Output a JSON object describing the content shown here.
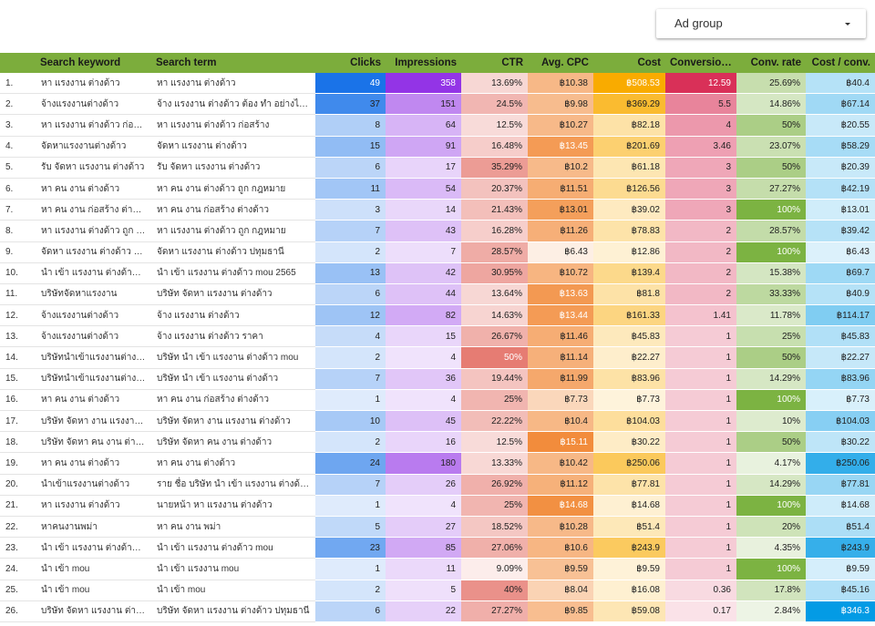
{
  "filter": {
    "label": "Ad group"
  },
  "columns": [
    {
      "key": "idx",
      "label": ""
    },
    {
      "key": "keyword",
      "label": "Search keyword"
    },
    {
      "key": "term",
      "label": "Search term"
    },
    {
      "key": "clicks",
      "label": "Clicks"
    },
    {
      "key": "impr",
      "label": "Impressions"
    },
    {
      "key": "ctr",
      "label": "CTR"
    },
    {
      "key": "cpc",
      "label": "Avg. CPC"
    },
    {
      "key": "cost",
      "label": "Cost"
    },
    {
      "key": "conv",
      "label": "Conversion..."
    },
    {
      "key": "convrate",
      "label": "Conv. rate"
    },
    {
      "key": "costconv",
      "label": "Cost / conv."
    }
  ],
  "rows": [
    {
      "idx": "1.",
      "keyword": "หา แรงงาน ต่างด้าว",
      "term": "หา แรงงาน ต่างด้าว",
      "clicks": "49",
      "impr": "358",
      "ctr": "13.69%",
      "cpc": "฿10.38",
      "cost": "฿508.53",
      "conv": "12.59",
      "convrate": "25.69%",
      "costconv": "฿40.4"
    },
    {
      "idx": "2.",
      "keyword": "จ้างแรงงานต่างด้าว",
      "term": "จ้าง แรงงาน ต่างด้าว ต้อง ทํา อย่างไร 25...",
      "clicks": "37",
      "impr": "151",
      "ctr": "24.5%",
      "cpc": "฿9.98",
      "cost": "฿369.29",
      "conv": "5.5",
      "convrate": "14.86%",
      "costconv": "฿67.14"
    },
    {
      "idx": "3.",
      "keyword": "หา แรงงาน ต่างด้าว ก่อสร้าง",
      "term": "หา แรงงาน ต่างด้าว ก่อสร้าง",
      "clicks": "8",
      "impr": "64",
      "ctr": "12.5%",
      "cpc": "฿10.27",
      "cost": "฿82.18",
      "conv": "4",
      "convrate": "50%",
      "costconv": "฿20.55"
    },
    {
      "idx": "4.",
      "keyword": "จัดหาแรงงานต่างด้าว",
      "term": "จัดหา แรงงาน ต่างด้าว",
      "clicks": "15",
      "impr": "91",
      "ctr": "16.48%",
      "cpc": "฿13.45",
      "cost": "฿201.69",
      "conv": "3.46",
      "convrate": "23.07%",
      "costconv": "฿58.29"
    },
    {
      "idx": "5.",
      "keyword": "รับ จัดหา แรงงาน ต่างด้าว",
      "term": "รับ จัดหา แรงงาน ต่างด้าว",
      "clicks": "6",
      "impr": "17",
      "ctr": "35.29%",
      "cpc": "฿10.2",
      "cost": "฿61.18",
      "conv": "3",
      "convrate": "50%",
      "costconv": "฿20.39"
    },
    {
      "idx": "6.",
      "keyword": "หา คน งาน ต่างด้าว",
      "term": "หา คน งาน ต่างด้าว ถูก กฎหมาย",
      "clicks": "11",
      "impr": "54",
      "ctr": "20.37%",
      "cpc": "฿11.51",
      "cost": "฿126.56",
      "conv": "3",
      "convrate": "27.27%",
      "costconv": "฿42.19"
    },
    {
      "idx": "7.",
      "keyword": "หา คน งาน ก่อสร้าง ต่างด้าว",
      "term": "หา คน งาน ก่อสร้าง ต่างด้าว",
      "clicks": "3",
      "impr": "14",
      "ctr": "21.43%",
      "cpc": "฿13.01",
      "cost": "฿39.02",
      "conv": "3",
      "convrate": "100%",
      "costconv": "฿13.01"
    },
    {
      "idx": "8.",
      "keyword": "หา แรงงาน ต่างด้าว ถูก กฎ...",
      "term": "หา แรงงาน ต่างด้าว ถูก กฎหมาย",
      "clicks": "7",
      "impr": "43",
      "ctr": "16.28%",
      "cpc": "฿11.26",
      "cost": "฿78.83",
      "conv": "2",
      "convrate": "28.57%",
      "costconv": "฿39.42"
    },
    {
      "idx": "9.",
      "keyword": "จัดหา แรงงาน ต่างด้าว ปทุ...",
      "term": "จัดหา แรงงาน ต่างด้าว ปทุมธานี",
      "clicks": "2",
      "impr": "7",
      "ctr": "28.57%",
      "cpc": "฿6.43",
      "cost": "฿12.86",
      "conv": "2",
      "convrate": "100%",
      "costconv": "฿6.43"
    },
    {
      "idx": "10.",
      "keyword": "นํา เข้า แรงงาน ต่างด้าว mou",
      "term": "นํา เข้า แรงงาน ต่างด้าว mou 2565",
      "clicks": "13",
      "impr": "42",
      "ctr": "30.95%",
      "cpc": "฿10.72",
      "cost": "฿139.4",
      "conv": "2",
      "convrate": "15.38%",
      "costconv": "฿69.7"
    },
    {
      "idx": "11.",
      "keyword": "บริษัทจัดหาแรงงาน",
      "term": "บริษัท จัดหา แรงงาน ต่างด้าว",
      "clicks": "6",
      "impr": "44",
      "ctr": "13.64%",
      "cpc": "฿13.63",
      "cost": "฿81.8",
      "conv": "2",
      "convrate": "33.33%",
      "costconv": "฿40.9"
    },
    {
      "idx": "12.",
      "keyword": "จ้างแรงงานต่างด้าว",
      "term": "จ้าง แรงงาน ต่างด้าว",
      "clicks": "12",
      "impr": "82",
      "ctr": "14.63%",
      "cpc": "฿13.44",
      "cost": "฿161.33",
      "conv": "1.41",
      "convrate": "11.78%",
      "costconv": "฿114.17"
    },
    {
      "idx": "13.",
      "keyword": "จ้างแรงงานต่างด้าว",
      "term": "จ้าง แรงงาน ต่างด้าว ราคา",
      "clicks": "4",
      "impr": "15",
      "ctr": "26.67%",
      "cpc": "฿11.46",
      "cost": "฿45.83",
      "conv": "1",
      "convrate": "25%",
      "costconv": "฿45.83"
    },
    {
      "idx": "14.",
      "keyword": "บริษัทนําเข้าแรงงานต่างด้าว",
      "term": "บริษัท นํา เข้า แรงงาน ต่างด้าว mou",
      "clicks": "2",
      "impr": "4",
      "ctr": "50%",
      "cpc": "฿11.14",
      "cost": "฿22.27",
      "conv": "1",
      "convrate": "50%",
      "costconv": "฿22.27"
    },
    {
      "idx": "15.",
      "keyword": "บริษัทนําเข้าแรงงานต่างด้าว",
      "term": "บริษัท นํา เข้า แรงงาน ต่างด้าว",
      "clicks": "7",
      "impr": "36",
      "ctr": "19.44%",
      "cpc": "฿11.99",
      "cost": "฿83.96",
      "conv": "1",
      "convrate": "14.29%",
      "costconv": "฿83.96"
    },
    {
      "idx": "16.",
      "keyword": "หา คน งาน ต่างด้าว",
      "term": "หา คน งาน ก่อสร้าง ต่างด้าว",
      "clicks": "1",
      "impr": "4",
      "ctr": "25%",
      "cpc": "฿7.73",
      "cost": "฿7.73",
      "conv": "1",
      "convrate": "100%",
      "costconv": "฿7.73"
    },
    {
      "idx": "17.",
      "keyword": "บริษัท จัดหา งาน แรงงาน ต่...",
      "term": "บริษัท จัดหา งาน แรงงาน ต่างด้าว",
      "clicks": "10",
      "impr": "45",
      "ctr": "22.22%",
      "cpc": "฿10.4",
      "cost": "฿104.03",
      "conv": "1",
      "convrate": "10%",
      "costconv": "฿104.03"
    },
    {
      "idx": "18.",
      "keyword": "บริษัท จัดหา คน งาน ต่างด้าว",
      "term": "บริษัท จัดหา คน งาน ต่างด้าว",
      "clicks": "2",
      "impr": "16",
      "ctr": "12.5%",
      "cpc": "฿15.11",
      "cost": "฿30.22",
      "conv": "1",
      "convrate": "50%",
      "costconv": "฿30.22"
    },
    {
      "idx": "19.",
      "keyword": "หา คน งาน ต่างด้าว",
      "term": "หา คน งาน ต่างด้าว",
      "clicks": "24",
      "impr": "180",
      "ctr": "13.33%",
      "cpc": "฿10.42",
      "cost": "฿250.06",
      "conv": "1",
      "convrate": "4.17%",
      "costconv": "฿250.06"
    },
    {
      "idx": "20.",
      "keyword": "นําเข้าแรงงานต่างด้าว",
      "term": "ราย ชื่อ บริษัท นํา เข้า แรงงาน ต่างด้าว 2...",
      "clicks": "7",
      "impr": "26",
      "ctr": "26.92%",
      "cpc": "฿11.12",
      "cost": "฿77.81",
      "conv": "1",
      "convrate": "14.29%",
      "costconv": "฿77.81"
    },
    {
      "idx": "21.",
      "keyword": "หา แรงงาน ต่างด้าว",
      "term": "นายหน้า หา แรงงาน ต่างด้าว",
      "clicks": "1",
      "impr": "4",
      "ctr": "25%",
      "cpc": "฿14.68",
      "cost": "฿14.68",
      "conv": "1",
      "convrate": "100%",
      "costconv": "฿14.68"
    },
    {
      "idx": "22.",
      "keyword": "หาคนงานพม่า",
      "term": "หา คน งาน พม่า",
      "clicks": "5",
      "impr": "27",
      "ctr": "18.52%",
      "cpc": "฿10.28",
      "cost": "฿51.4",
      "conv": "1",
      "convrate": "20%",
      "costconv": "฿51.4"
    },
    {
      "idx": "23.",
      "keyword": "นํา เข้า แรงงาน ต่างด้าว mou",
      "term": "นํา เข้า แรงงาน ต่างด้าว mou",
      "clicks": "23",
      "impr": "85",
      "ctr": "27.06%",
      "cpc": "฿10.6",
      "cost": "฿243.9",
      "conv": "1",
      "convrate": "4.35%",
      "costconv": "฿243.9"
    },
    {
      "idx": "24.",
      "keyword": "นํา เข้า mou",
      "term": "นํา เข้า แรงงาน mou",
      "clicks": "1",
      "impr": "11",
      "ctr": "9.09%",
      "cpc": "฿9.59",
      "cost": "฿9.59",
      "conv": "1",
      "convrate": "100%",
      "costconv": "฿9.59"
    },
    {
      "idx": "25.",
      "keyword": "นํา เข้า mou",
      "term": "นํา เข้า mou",
      "clicks": "2",
      "impr": "5",
      "ctr": "40%",
      "cpc": "฿8.04",
      "cost": "฿16.08",
      "conv": "0.36",
      "convrate": "17.8%",
      "costconv": "฿45.16"
    },
    {
      "idx": "26.",
      "keyword": "บริษัท จัดหา แรงงาน ต่างด้...",
      "term": "บริษัท จัดหา แรงงาน ต่างด้าว ปทุมธานี",
      "clicks": "6",
      "impr": "22",
      "ctr": "27.27%",
      "cpc": "฿9.85",
      "cost": "฿59.08",
      "conv": "0.17",
      "convrate": "2.84%",
      "costconv": "฿346.3"
    }
  ]
}
